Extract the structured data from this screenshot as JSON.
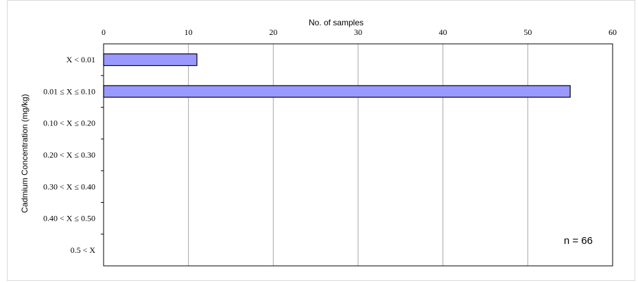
{
  "chart_data": {
    "type": "bar",
    "orientation": "horizontal",
    "categories": [
      "X < 0.01",
      "0.01 ≤ X ≤ 0.10",
      "0.10 < X ≤ 0.20",
      "0.20 < X ≤ 0.30",
      "0.30 < X ≤ 0.40",
      "0.40 < X ≤ 0.50",
      "0.5 < X"
    ],
    "values": [
      11,
      55,
      0,
      0,
      0,
      0,
      0
    ],
    "xlabel": "No. of samples",
    "ylabel": "Cadmium Concentration (mg/kg)",
    "xlim": [
      0,
      60
    ],
    "xticks": [
      0,
      10,
      20,
      30,
      40,
      50,
      60
    ],
    "xtick_labels": [
      "0",
      "10",
      "20",
      "30",
      "40",
      "50",
      "60"
    ],
    "x_axis_position": "top",
    "grid": "vertical",
    "annotation": "n = 66",
    "annotation_position": "bottom-right",
    "bar_color": "#9999ff",
    "bar_edge_color": "#000000"
  }
}
